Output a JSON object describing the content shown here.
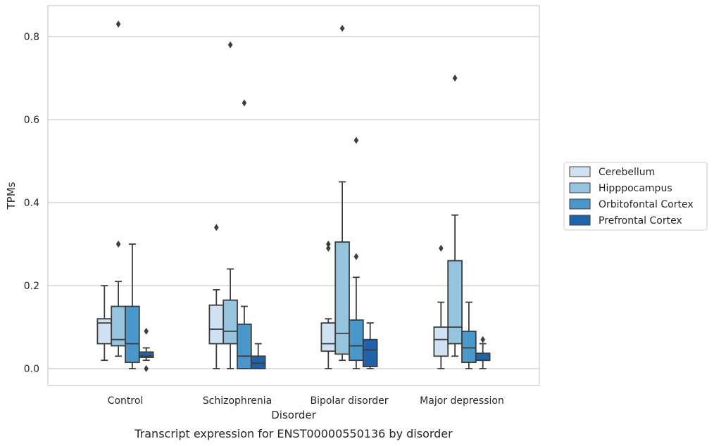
{
  "chart_data": {
    "type": "box",
    "xlabel": "Disorder",
    "ylabel": "TPMs",
    "caption": "Transcript expression for ENST00000550136 by disorder",
    "ylim": [
      -0.04,
      0.875
    ],
    "yticks": [
      0.0,
      0.2,
      0.4,
      0.6,
      0.8
    ],
    "ytick_labels": [
      "0.0",
      "0.2",
      "0.4",
      "0.6",
      "0.8"
    ],
    "grid": "horizontal",
    "legend_position": "right",
    "categories": [
      "Control",
      "Schizophrenia",
      "Bipolar disorder",
      "Major depression"
    ],
    "series": [
      {
        "name": "Cerebellum",
        "color": "#d0e1f2",
        "boxes": [
          {
            "whislo": 0.02,
            "q1": 0.06,
            "med": 0.11,
            "q3": 0.12,
            "whishi": 0.2,
            "fliers": []
          },
          {
            "whislo": 0.0,
            "q1": 0.06,
            "med": 0.095,
            "q3": 0.153,
            "whishi": 0.19,
            "fliers": [
              0.34
            ]
          },
          {
            "whislo": 0.0,
            "q1": 0.042,
            "med": 0.06,
            "q3": 0.11,
            "whishi": 0.12,
            "fliers": [
              0.29,
              0.3
            ]
          },
          {
            "whislo": 0.0,
            "q1": 0.03,
            "med": 0.07,
            "q3": 0.1,
            "whishi": 0.16,
            "fliers": [
              0.29
            ]
          }
        ]
      },
      {
        "name": "Hipppocampus",
        "color": "#94c4df",
        "boxes": [
          {
            "whislo": 0.03,
            "q1": 0.055,
            "med": 0.07,
            "q3": 0.15,
            "whishi": 0.21,
            "fliers": [
              0.3,
              0.83
            ]
          },
          {
            "whislo": 0.0,
            "q1": 0.06,
            "med": 0.09,
            "q3": 0.165,
            "whishi": 0.24,
            "fliers": [
              0.78
            ]
          },
          {
            "whislo": 0.02,
            "q1": 0.035,
            "med": 0.085,
            "q3": 0.305,
            "whishi": 0.45,
            "fliers": [
              0.82
            ]
          },
          {
            "whislo": 0.03,
            "q1": 0.06,
            "med": 0.1,
            "q3": 0.26,
            "whishi": 0.37,
            "fliers": [
              0.7
            ]
          }
        ]
      },
      {
        "name": "Orbitofontal Cortex",
        "color": "#4a98c9",
        "boxes": [
          {
            "whislo": 0.0,
            "q1": 0.015,
            "med": 0.06,
            "q3": 0.15,
            "whishi": 0.3,
            "fliers": []
          },
          {
            "whislo": 0.0,
            "q1": 0.0,
            "med": 0.03,
            "q3": 0.107,
            "whishi": 0.15,
            "fliers": [
              0.64
            ]
          },
          {
            "whislo": 0.0,
            "q1": 0.02,
            "med": 0.055,
            "q3": 0.117,
            "whishi": 0.22,
            "fliers": [
              0.27,
              0.55
            ]
          },
          {
            "whislo": 0.0,
            "q1": 0.015,
            "med": 0.05,
            "q3": 0.09,
            "whishi": 0.16,
            "fliers": []
          }
        ]
      },
      {
        "name": "Prefrontal Cortex",
        "color": "#2163aa",
        "boxes": [
          {
            "whislo": 0.02,
            "q1": 0.027,
            "med": 0.03,
            "q3": 0.04,
            "whishi": 0.05,
            "fliers": [
              0.0,
              0.09
            ]
          },
          {
            "whislo": 0.0,
            "q1": 0.0,
            "med": 0.013,
            "q3": 0.03,
            "whishi": 0.06,
            "fliers": []
          },
          {
            "whislo": 0.0,
            "q1": 0.005,
            "med": 0.045,
            "q3": 0.07,
            "whishi": 0.11,
            "fliers": []
          },
          {
            "whislo": 0.0,
            "q1": 0.02,
            "med": 0.02,
            "q3": 0.037,
            "whishi": 0.06,
            "fliers": [
              0.07
            ]
          }
        ]
      }
    ]
  }
}
